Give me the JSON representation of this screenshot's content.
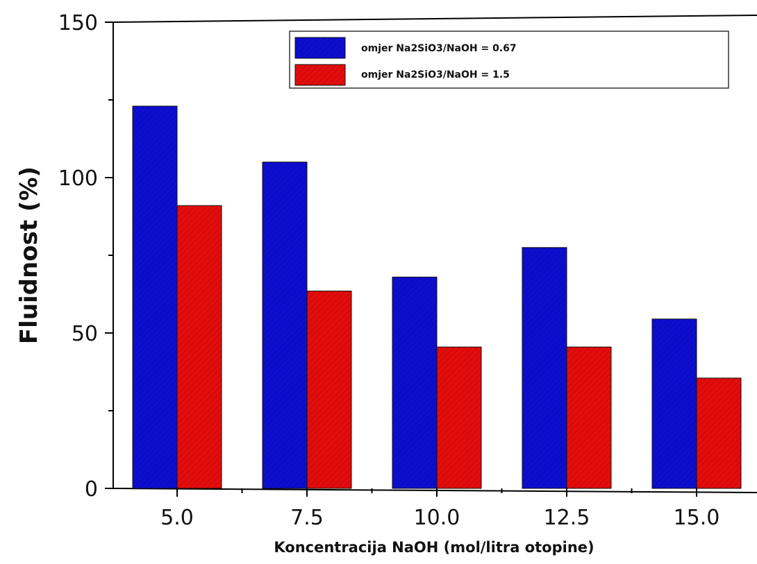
{
  "chart_data": {
    "type": "bar",
    "title": "",
    "xlabel": "Koncentracija NaOH (mol/litra otopine)",
    "ylabel": "Fluidnost (%)",
    "categories": [
      "5.0",
      "7.5",
      "10.0",
      "12.5",
      "15.0"
    ],
    "ylim": [
      0,
      150
    ],
    "yticks": [
      0,
      50,
      100,
      150
    ],
    "grid": false,
    "legend_position": "top-right",
    "series": [
      {
        "name": "omjer Na2SiO3/NaOH = 0.67",
        "color": "#0b0bd0",
        "values": [
          123,
          105,
          68,
          77.5,
          54.5
        ]
      },
      {
        "name": "omjer Na2SiO3/NaOH = 1.5",
        "color": "#e30c0c",
        "values": [
          91,
          63.5,
          45.5,
          45.5,
          35.5
        ]
      }
    ]
  }
}
